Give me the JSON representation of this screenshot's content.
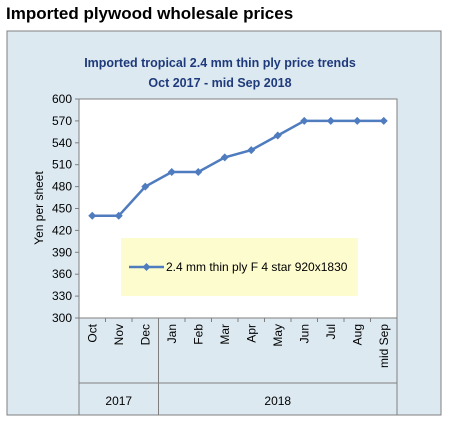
{
  "page_title": "Imported plywood wholesale prices",
  "chart_data": {
    "type": "line",
    "title": "Imported tropical 2.4 mm thin ply price trends",
    "subtitle": "Oct 2017 -  mid  Sep 2018",
    "ylabel": "Yen per sheet",
    "ylim": [
      300,
      600
    ],
    "yticks": [
      300,
      330,
      360,
      390,
      420,
      450,
      480,
      510,
      540,
      570,
      600
    ],
    "categories": [
      "Oct",
      "Nov",
      "Dec",
      "Jan",
      "Feb",
      "Mar",
      "Apr",
      "May",
      "Jun",
      "Jul",
      "Aug",
      "mid Sep"
    ],
    "year_groups": [
      {
        "label": "2017",
        "count": 3
      },
      {
        "label": "2018",
        "count": 9
      }
    ],
    "series": [
      {
        "name": "2.4 mm thin ply F 4 star 920x1830",
        "values": [
          440,
          440,
          480,
          500,
          500,
          520,
          530,
          550,
          570,
          570,
          570,
          570
        ]
      }
    ],
    "legend_position": "center",
    "grid": false,
    "colors": {
      "outer_bg": "#dce9f1",
      "plot_bg": "#ffffff",
      "legend_bg": "#fdfccf",
      "line": "#4f7cbf",
      "title": "#1f3a7a"
    }
  }
}
